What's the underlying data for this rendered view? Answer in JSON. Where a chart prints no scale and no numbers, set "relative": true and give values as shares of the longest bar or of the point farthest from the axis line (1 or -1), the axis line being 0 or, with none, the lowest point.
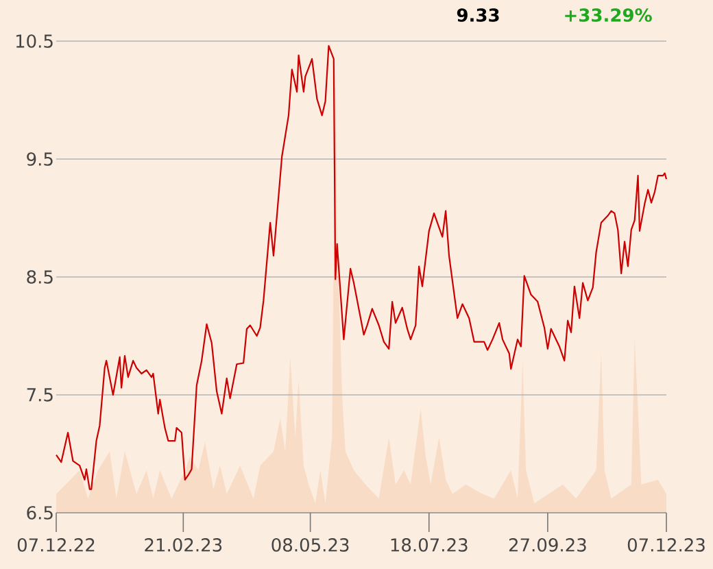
{
  "chart_data": [
    {
      "type": "area",
      "relative": true,
      "series": [
        {
          "color": "#f8dcc6",
          "x": [
            "2022-12-07",
            "2022-12-21",
            "2022-12-26",
            "2023-01-01",
            "2023-01-08",
            "2023-01-12",
            "2023-01-17",
            "2023-01-24",
            "2023-01-30",
            "2023-02-03",
            "2023-02-07",
            "2023-02-14",
            "2023-02-22",
            "2023-02-25",
            "2023-03-02",
            "2023-03-06",
            "2023-03-11",
            "2023-03-15",
            "2023-03-19",
            "2023-03-27",
            "2023-04-04",
            "2023-04-08",
            "2023-04-16",
            "2023-04-20",
            "2023-04-23",
            "2023-04-26",
            "2023-04-29",
            "2023-05-01",
            "2023-05-04",
            "2023-05-07",
            "2023-05-11",
            "2023-05-14",
            "2023-05-17",
            "2023-05-21",
            "2023-05-23",
            "2023-05-24",
            "2023-05-27",
            "2023-05-29",
            "2023-06-03",
            "2023-06-10",
            "2023-06-18",
            "2023-06-24",
            "2023-06-28",
            "2023-07-03",
            "2023-07-07",
            "2023-07-13",
            "2023-07-16",
            "2023-07-19",
            "2023-07-24",
            "2023-07-28",
            "2023-08-01",
            "2023-08-09",
            "2023-08-19",
            "2023-08-26",
            "2023-09-05",
            "2023-09-09",
            "2023-09-12",
            "2023-09-14",
            "2023-09-19",
            "2023-10-06",
            "2023-10-14",
            "2023-10-26",
            "2023-10-29",
            "2023-10-31",
            "2023-11-04",
            "2023-11-16",
            "2023-11-18",
            "2023-11-20",
            "2023-11-22",
            "2023-12-02",
            "2023-12-07"
          ],
          "values": [
            0.04,
            0.09,
            0.03,
            0.09,
            0.13,
            0.03,
            0.13,
            0.04,
            0.09,
            0.03,
            0.09,
            0.03,
            0.09,
            0.12,
            0.09,
            0.15,
            0.05,
            0.1,
            0.04,
            0.1,
            0.03,
            0.1,
            0.13,
            0.2,
            0.13,
            0.33,
            0.16,
            0.28,
            0.1,
            0.06,
            0.02,
            0.09,
            0.02,
            0.16,
            1.0,
            0.61,
            0.25,
            0.13,
            0.09,
            0.06,
            0.03,
            0.16,
            0.06,
            0.09,
            0.06,
            0.22,
            0.12,
            0.06,
            0.16,
            0.07,
            0.04,
            0.06,
            0.04,
            0.03,
            0.09,
            0.03,
            0.32,
            0.09,
            0.02,
            0.06,
            0.03,
            0.09,
            0.34,
            0.09,
            0.03,
            0.06,
            0.37,
            0.22,
            0.06,
            0.07,
            0.04
          ]
        }
      ],
      "xlim": [
        "2022-12-07",
        "2023-12-07"
      ]
    },
    {
      "type": "line",
      "annotations": [
        "9.33",
        "+33.29%"
      ],
      "xlim": [
        "2022-12-07",
        "2023-12-07"
      ],
      "xticks": [
        {
          "value": "2022-12-07",
          "label": "07.12.22"
        },
        {
          "value": "2023-02-21",
          "label": "21.02.23"
        },
        {
          "value": "2023-05-08",
          "label": "08.05.23"
        },
        {
          "value": "2023-07-18",
          "label": "18.07.23"
        },
        {
          "value": "2023-09-27",
          "label": "27.09.23"
        },
        {
          "value": "2023-12-07",
          "label": "07.12.23"
        }
      ],
      "ylim": [
        6.5,
        10.5
      ],
      "yticks": [
        6.5,
        7.5,
        8.5,
        9.5,
        10.5
      ],
      "grid": "y",
      "series": [
        {
          "color": "#cc0000",
          "x": [
            "2022-12-07",
            "2022-12-10",
            "2022-12-14",
            "2022-12-17",
            "2022-12-21",
            "2022-12-24",
            "2022-12-25",
            "2022-12-27",
            "2022-12-28",
            "2022-12-31",
            "2023-01-02",
            "2023-01-05",
            "2023-01-06",
            "2023-01-10",
            "2023-01-14",
            "2023-01-15",
            "2023-01-17",
            "2023-01-19",
            "2023-01-22",
            "2023-01-24",
            "2023-01-27",
            "2023-01-30",
            "2023-02-02",
            "2023-02-03",
            "2023-02-06",
            "2023-02-07",
            "2023-02-10",
            "2023-02-12",
            "2023-02-16",
            "2023-02-17",
            "2023-02-20",
            "2023-02-22",
            "2023-02-24",
            "2023-02-26",
            "2023-03-01",
            "2023-03-04",
            "2023-03-07",
            "2023-03-10",
            "2023-03-13",
            "2023-03-16",
            "2023-03-19",
            "2023-03-21",
            "2023-03-25",
            "2023-03-29",
            "2023-03-31",
            "2023-04-02",
            "2023-04-06",
            "2023-04-08",
            "2023-04-10",
            "2023-04-14",
            "2023-04-16",
            "2023-04-21",
            "2023-04-25",
            "2023-04-27",
            "2023-04-30",
            "2023-05-01",
            "2023-05-04",
            "2023-05-05",
            "2023-05-08",
            "2023-05-09",
            "2023-05-12",
            "2023-05-15",
            "2023-05-17",
            "2023-05-19",
            "2023-05-22",
            "2023-05-23",
            "2023-05-24",
            "2023-05-28",
            "2023-06-01",
            "2023-06-03",
            "2023-06-09",
            "2023-06-11",
            "2023-06-14",
            "2023-06-18",
            "2023-06-21",
            "2023-06-24",
            "2023-06-26",
            "2023-06-28",
            "2023-07-02",
            "2023-07-05",
            "2023-07-07",
            "2023-07-10",
            "2023-07-12",
            "2023-07-14",
            "2023-07-18",
            "2023-07-21",
            "2023-07-23",
            "2023-07-26",
            "2023-07-28",
            "2023-07-30",
            "2023-08-04",
            "2023-08-07",
            "2023-08-11",
            "2023-08-14",
            "2023-08-20",
            "2023-08-22",
            "2023-08-25",
            "2023-08-29",
            "2023-08-31",
            "2023-09-04",
            "2023-09-05",
            "2023-09-09",
            "2023-09-11",
            "2023-09-13",
            "2023-09-17",
            "2023-09-21",
            "2023-09-25",
            "2023-09-27",
            "2023-09-29",
            "2023-10-04",
            "2023-10-07",
            "2023-10-09",
            "2023-10-11",
            "2023-10-13",
            "2023-10-16",
            "2023-10-18",
            "2023-10-21",
            "2023-10-24",
            "2023-10-26",
            "2023-10-29",
            "2023-11-02",
            "2023-11-04",
            "2023-11-06",
            "2023-11-08",
            "2023-11-10",
            "2023-11-12",
            "2023-11-14",
            "2023-11-16",
            "2023-11-18",
            "2023-11-20",
            "2023-11-21",
            "2023-11-24",
            "2023-11-26",
            "2023-11-28",
            "2023-11-30",
            "2023-12-02",
            "2023-12-05",
            "2023-12-06",
            "2023-12-07"
          ],
          "values": [
            6.99,
            6.93,
            7.18,
            6.94,
            6.9,
            6.78,
            6.87,
            6.7,
            6.7,
            7.11,
            7.24,
            7.73,
            7.79,
            7.5,
            7.82,
            7.56,
            7.83,
            7.65,
            7.79,
            7.73,
            7.68,
            7.71,
            7.65,
            7.68,
            7.34,
            7.46,
            7.22,
            7.11,
            7.11,
            7.22,
            7.18,
            6.78,
            6.82,
            6.87,
            7.58,
            7.79,
            8.1,
            7.94,
            7.53,
            7.34,
            7.64,
            7.47,
            7.76,
            7.77,
            8.06,
            8.09,
            8.0,
            8.07,
            8.3,
            8.96,
            8.68,
            9.52,
            9.87,
            10.26,
            10.07,
            10.38,
            10.07,
            10.2,
            10.31,
            10.35,
            10.01,
            9.87,
            9.99,
            10.46,
            10.35,
            8.48,
            8.78,
            7.97,
            8.57,
            8.45,
            8.01,
            8.09,
            8.23,
            8.09,
            7.95,
            7.89,
            8.29,
            8.11,
            8.24,
            8.06,
            7.97,
            8.09,
            8.59,
            8.42,
            8.89,
            9.04,
            8.96,
            8.84,
            9.06,
            8.68,
            8.15,
            8.27,
            8.15,
            7.95,
            7.95,
            7.88,
            7.97,
            8.11,
            7.97,
            7.85,
            7.72,
            7.97,
            7.91,
            8.51,
            8.35,
            8.29,
            8.07,
            7.89,
            8.06,
            7.91,
            7.79,
            8.13,
            8.03,
            8.42,
            8.15,
            8.45,
            8.3,
            8.41,
            8.71,
            8.96,
            9.02,
            9.06,
            9.04,
            8.9,
            8.53,
            8.8,
            8.59,
            8.9,
            8.98,
            9.36,
            8.89,
            9.12,
            9.24,
            9.13,
            9.22,
            9.36,
            9.36,
            9.38,
            9.33
          ]
        }
      ]
    }
  ]
}
